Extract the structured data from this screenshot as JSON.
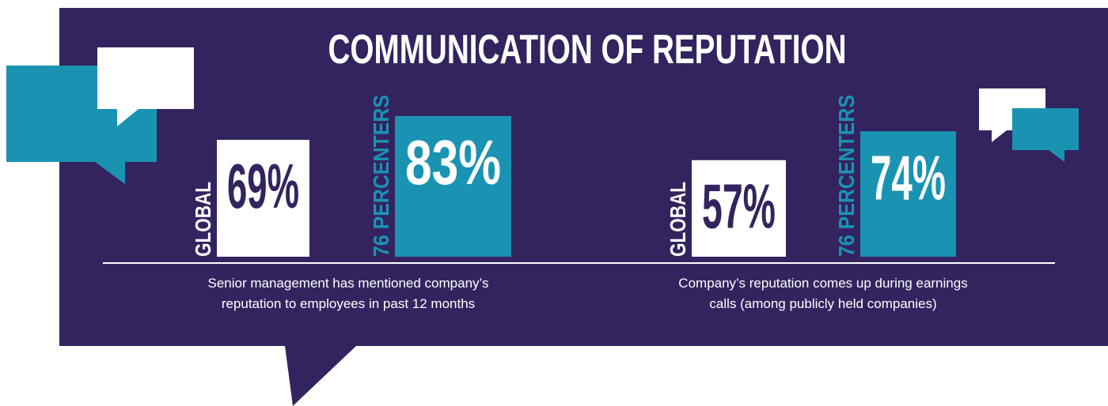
{
  "title": "COMMUNICATION OF REPUTATION",
  "chart_data": [
    {
      "type": "bar",
      "caption": [
        "Senior management has mentioned company’s",
        "reputation to employees in past 12 months"
      ],
      "categories": [
        "GLOBAL",
        "76 PERCENTERS"
      ],
      "values": [
        69,
        83
      ],
      "value_labels": [
        "69%",
        "83%"
      ],
      "colors": [
        "#ffffff",
        "#1a93b3"
      ]
    },
    {
      "type": "bar",
      "caption": [
        "Company’s reputation comes up during earnings",
        "calls (among publicly held companies)"
      ],
      "categories": [
        "GLOBAL",
        "76 PERCENTERS"
      ],
      "values": [
        57,
        74
      ],
      "value_labels": [
        "57%",
        "74%"
      ],
      "colors": [
        "#ffffff",
        "#1a93b3"
      ]
    }
  ]
}
